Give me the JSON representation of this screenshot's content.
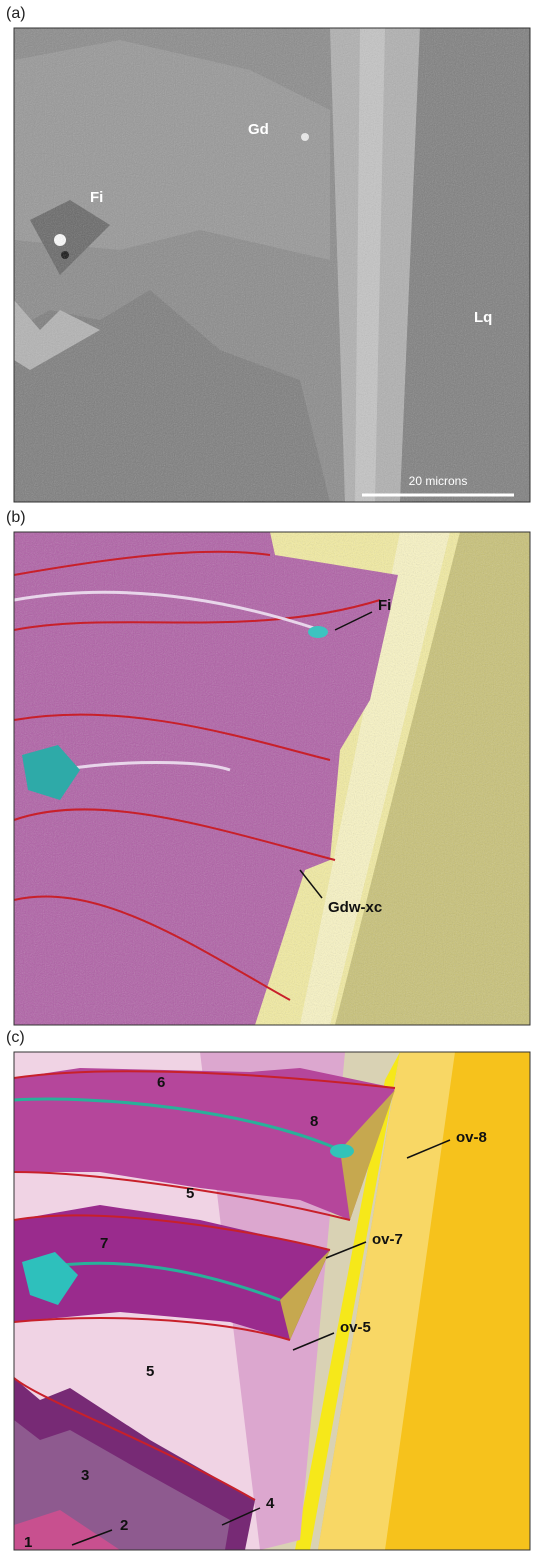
{
  "panels": [
    {
      "label": "(a)",
      "labels": [
        "Gd",
        "Fi",
        "Lq"
      ],
      "scale_bar": "20 microns"
    },
    {
      "label": "(b)",
      "labels": [
        "Fi",
        "Gdw-xc"
      ]
    },
    {
      "label": "(c)",
      "regions": [
        "6",
        "8",
        "5",
        "7",
        "5",
        "3",
        "2",
        "1",
        "4"
      ],
      "labels": [
        "ov-8",
        "ov-7",
        "ov-5"
      ]
    }
  ]
}
